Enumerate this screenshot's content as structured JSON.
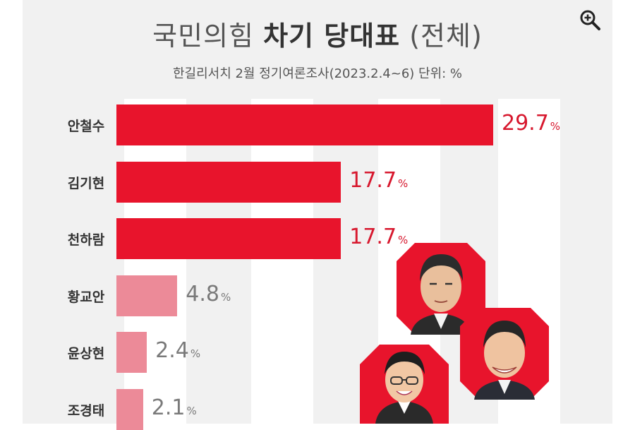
{
  "chart_data": {
    "type": "bar",
    "orientation": "horizontal",
    "title_light": "국민의힘",
    "title_bold": "차기 당대표",
    "title_suffix": "(전체)",
    "subtitle": "한길리서치 2월 정기여론조사(2023.2.4~6) 단위: %",
    "unit": "%",
    "categories": [
      "안철수",
      "김기현",
      "천하람",
      "황교안",
      "윤상현",
      "조경태"
    ],
    "values": [
      29.7,
      17.7,
      17.7,
      4.8,
      2.4,
      2.1
    ],
    "value_labels": [
      "29.7",
      "17.7",
      "17.7",
      "4.8",
      "2.4",
      "2.1"
    ],
    "xlim": [
      0,
      29.7
    ],
    "colors": {
      "top_bar": "#e8142c",
      "minor_bar": "#ec8a98",
      "top_label": "#d7182e",
      "minor_label": "#7a7a7a"
    }
  },
  "icons": {
    "zoom": "zoom-in-icon"
  }
}
